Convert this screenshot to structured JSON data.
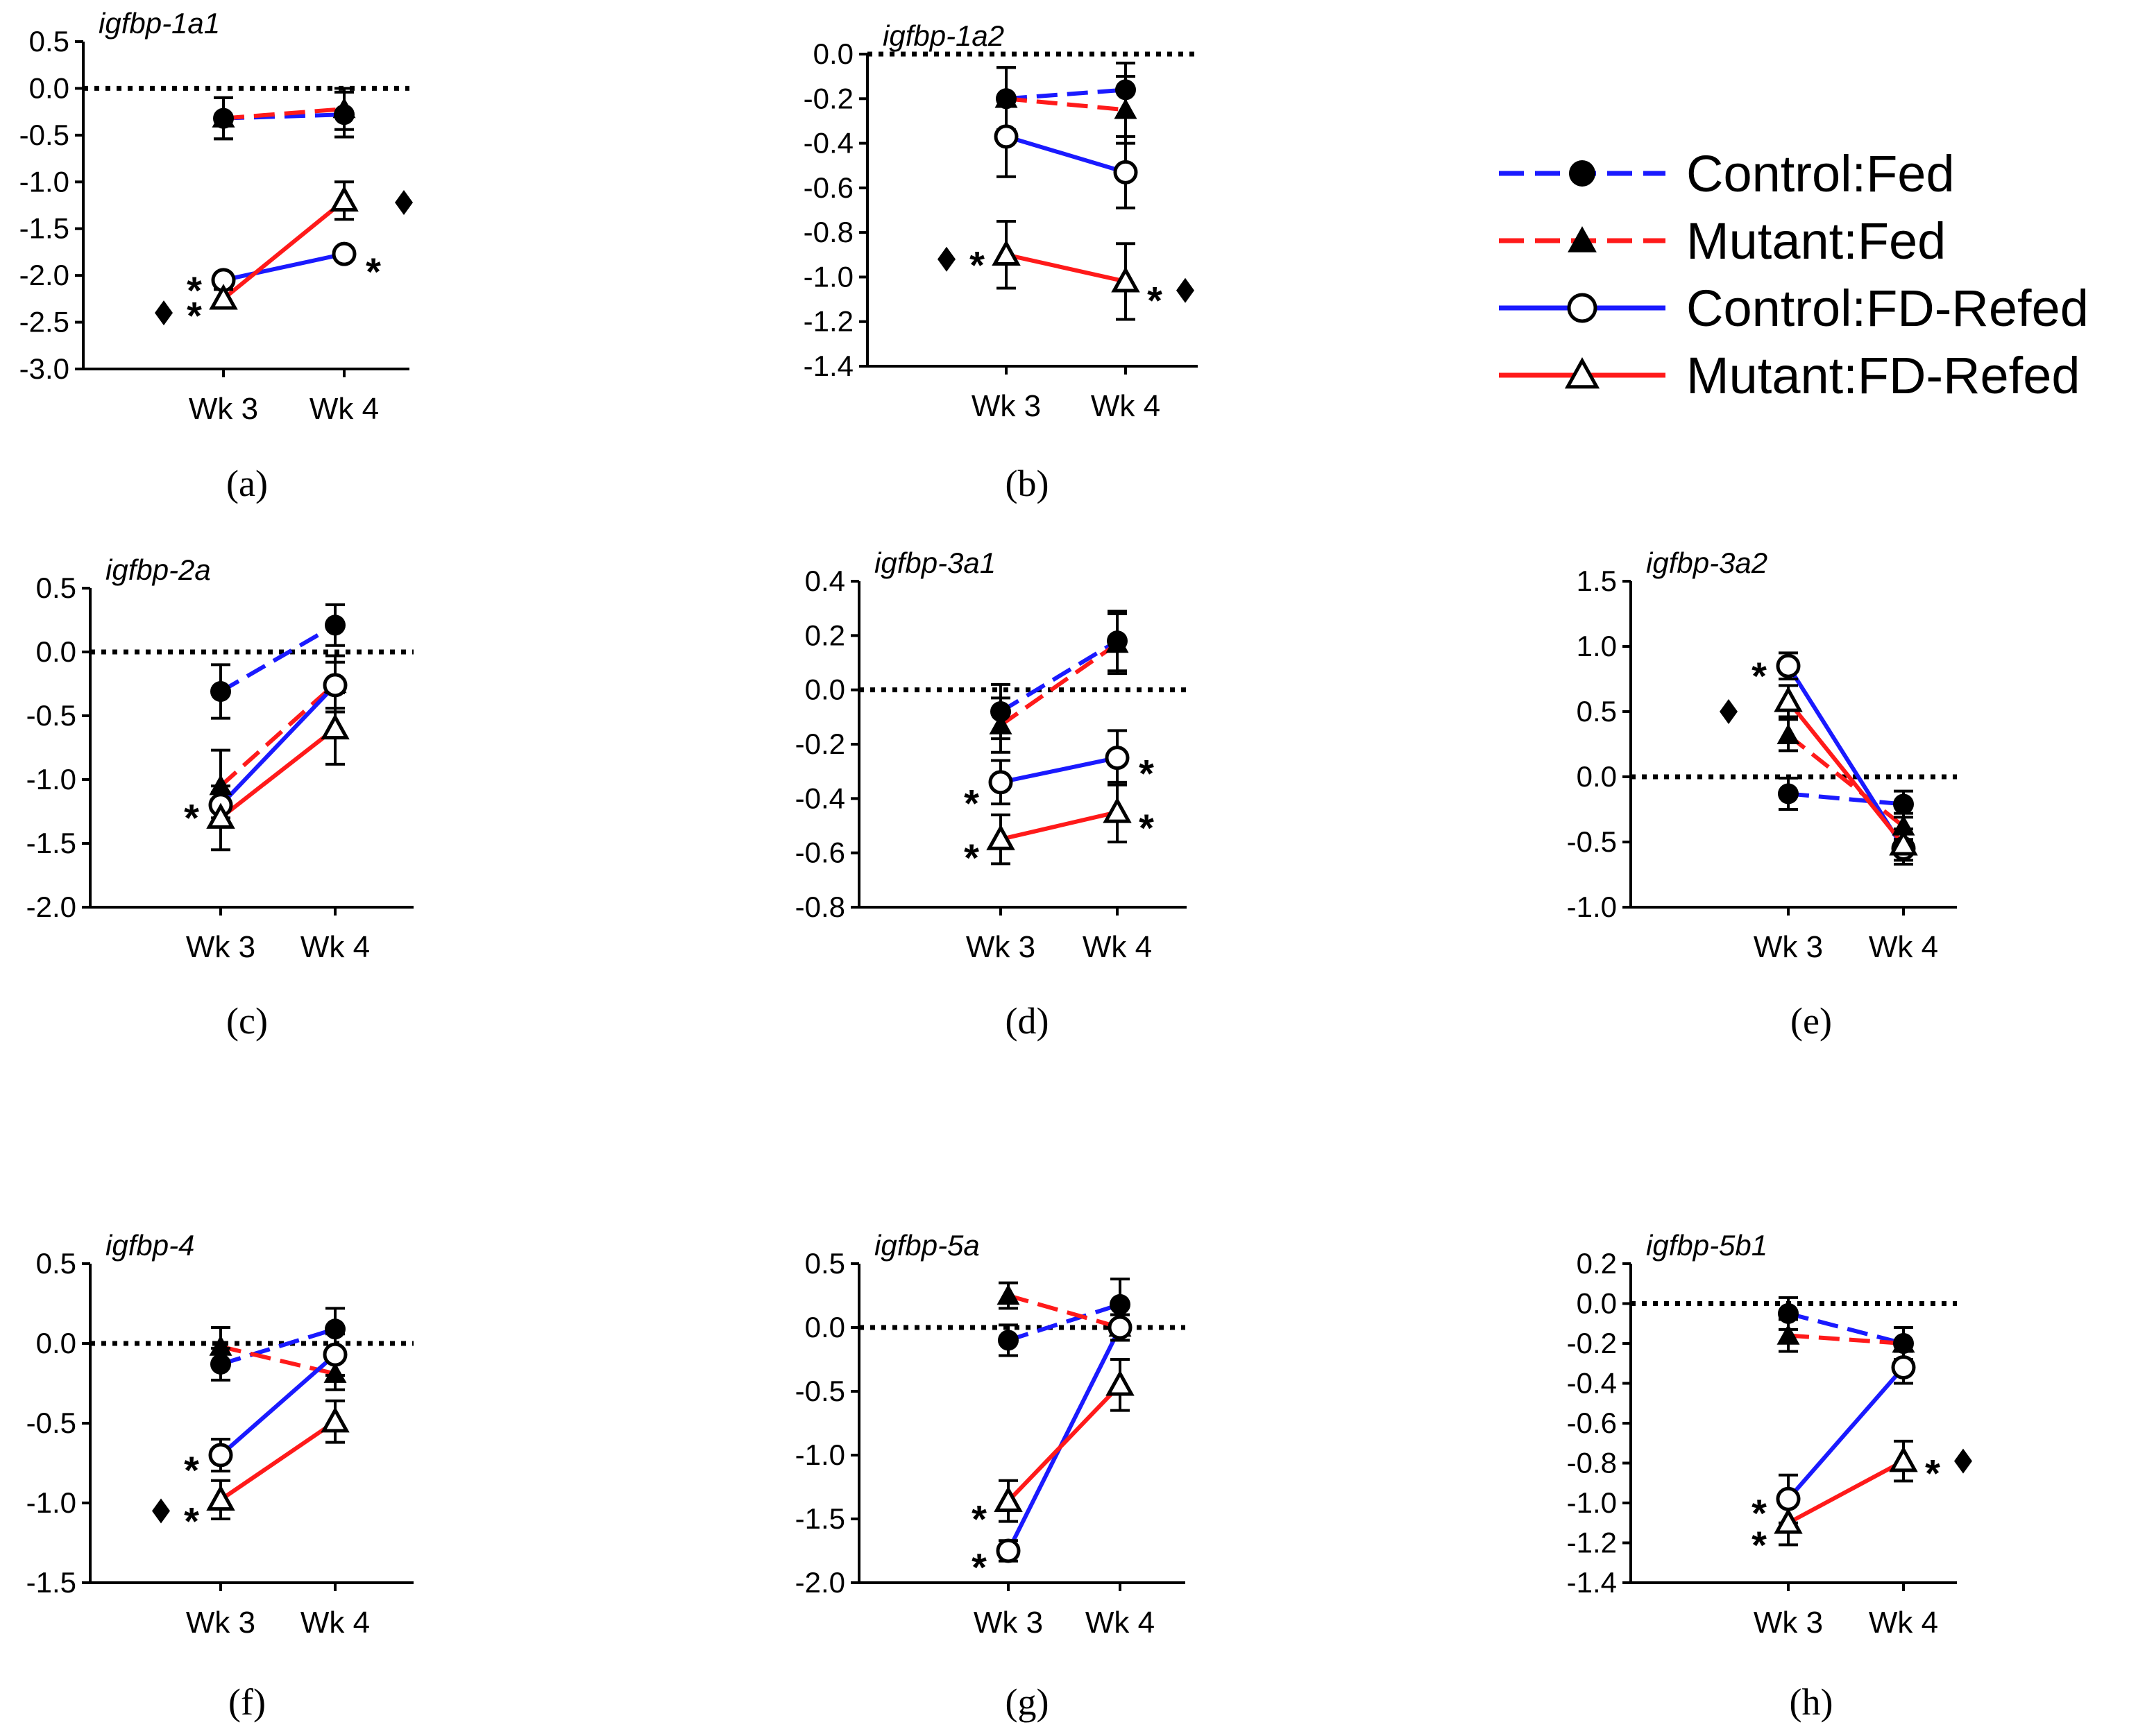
{
  "colors": {
    "blue": "#1a1aff",
    "red": "#ff1a1a",
    "black": "#000000"
  },
  "legend": {
    "items": [
      {
        "label": "Control:Fed",
        "color": "#1a1aff",
        "dashed": true,
        "marker": "filled-circle"
      },
      {
        "label": "Mutant:Fed",
        "color": "#ff1a1a",
        "dashed": true,
        "marker": "filled-triangle"
      },
      {
        "label": "Control:FD-Refed",
        "color": "#1a1aff",
        "dashed": false,
        "marker": "open-circle"
      },
      {
        "label": "Mutant:FD-Refed",
        "color": "#ff1a1a",
        "dashed": false,
        "marker": "open-triangle"
      }
    ]
  },
  "chart_data": [
    {
      "type": "line",
      "panel_label": "(a)",
      "title": "igfbp-1a1",
      "x": [
        "Wk 3",
        "Wk 4"
      ],
      "ylim": [
        -3.0,
        0.5
      ],
      "yticks": [
        "0.5",
        "0.0",
        "-0.5",
        "-1.0",
        "-1.5",
        "-2.0",
        "-2.5",
        "-3.0"
      ],
      "series": [
        {
          "name": "Control:Fed",
          "values": [
            -0.32,
            -0.28
          ],
          "err": [
            0.22,
            0.24
          ]
        },
        {
          "name": "Mutant:Fed",
          "values": [
            -0.32,
            -0.22
          ],
          "err": [
            0.22,
            0.22
          ]
        },
        {
          "name": "Control:FD-Refed",
          "values": [
            -2.05,
            -1.77
          ],
          "err": [
            0.07,
            0.06
          ]
        },
        {
          "name": "Mutant:FD-Refed",
          "values": [
            -2.25,
            -1.2
          ],
          "err": [
            0.1,
            0.2
          ]
        }
      ],
      "annotations": [
        {
          "text": "*",
          "x": "Wk 3",
          "y": -2.05,
          "side": "left"
        },
        {
          "text": "*",
          "x": "Wk 3",
          "y": -2.32,
          "side": "left"
        },
        {
          "text": "♦",
          "x": "Wk 3",
          "y": -2.4,
          "side": "far-left"
        },
        {
          "text": "*",
          "x": "Wk 4",
          "y": -1.85,
          "side": "right"
        },
        {
          "text": "♦",
          "x": "Wk 4",
          "y": -1.22,
          "side": "far-right"
        }
      ]
    },
    {
      "type": "line",
      "panel_label": "(b)",
      "title": "igfbp-1a2",
      "x": [
        "Wk 3",
        "Wk 4"
      ],
      "ylim": [
        -1.4,
        0.0
      ],
      "yticks": [
        "0.0",
        "-0.2",
        "-0.4",
        "-0.6",
        "-0.8",
        "-1.0",
        "-1.2",
        "-1.4"
      ],
      "series": [
        {
          "name": "Control:Fed",
          "values": [
            -0.2,
            -0.16
          ],
          "err": [
            0.14,
            0.12
          ]
        },
        {
          "name": "Mutant:Fed",
          "values": [
            -0.2,
            -0.25
          ],
          "err": [
            0.14,
            0.15
          ]
        },
        {
          "name": "Control:FD-Refed",
          "values": [
            -0.37,
            -0.53
          ],
          "err": [
            0.18,
            0.16
          ]
        },
        {
          "name": "Mutant:FD-Refed",
          "values": [
            -0.9,
            -1.02
          ],
          "err": [
            0.15,
            0.17
          ]
        }
      ],
      "annotations": [
        {
          "text": "*",
          "x": "Wk 3",
          "y": -0.9,
          "side": "left"
        },
        {
          "text": "♦",
          "x": "Wk 3",
          "y": -0.92,
          "side": "far-left"
        },
        {
          "text": "*",
          "x": "Wk 4",
          "y": -1.06,
          "side": "right"
        },
        {
          "text": "♦",
          "x": "Wk 4",
          "y": -1.06,
          "side": "far-right"
        }
      ]
    },
    {
      "type": "line",
      "panel_label": "(c)",
      "title": "igfbp-2a",
      "x": [
        "Wk 3",
        "Wk 4"
      ],
      "ylim": [
        -2.0,
        0.5
      ],
      "yticks": [
        "0.5",
        "0.0",
        "-0.5",
        "-1.0",
        "-1.5",
        "-2.0"
      ],
      "series": [
        {
          "name": "Control:Fed",
          "values": [
            -0.31,
            0.21
          ],
          "err": [
            0.21,
            0.16
          ]
        },
        {
          "name": "Mutant:Fed",
          "values": [
            -1.05,
            -0.25
          ],
          "err": [
            0.28,
            0.22
          ]
        },
        {
          "name": "Control:FD-Refed",
          "values": [
            -1.2,
            -0.26
          ],
          "err": [
            0.1,
            0.18
          ]
        },
        {
          "name": "Mutant:FD-Refed",
          "values": [
            -1.3,
            -0.6
          ],
          "err": [
            0.25,
            0.28
          ]
        }
      ],
      "annotations": [
        {
          "text": "*",
          "x": "Wk 3",
          "y": -1.22,
          "side": "left"
        }
      ]
    },
    {
      "type": "line",
      "panel_label": "(d)",
      "title": "igfbp-3a1",
      "x": [
        "Wk 3",
        "Wk 4"
      ],
      "ylim": [
        -0.8,
        0.4
      ],
      "yticks": [
        "0.4",
        "0.2",
        "0.0",
        "-0.2",
        "-0.4",
        "-0.6",
        "-0.8"
      ],
      "series": [
        {
          "name": "Control:Fed",
          "values": [
            -0.08,
            0.18
          ],
          "err": [
            0.1,
            0.11
          ]
        },
        {
          "name": "Mutant:Fed",
          "values": [
            -0.13,
            0.17
          ],
          "err": [
            0.1,
            0.11
          ]
        },
        {
          "name": "Control:FD-Refed",
          "values": [
            -0.34,
            -0.25
          ],
          "err": [
            0.08,
            0.1
          ]
        },
        {
          "name": "Mutant:FD-Refed",
          "values": [
            -0.55,
            -0.45
          ],
          "err": [
            0.09,
            0.11
          ]
        }
      ],
      "annotations": [
        {
          "text": "*",
          "x": "Wk 3",
          "y": -0.38,
          "side": "left"
        },
        {
          "text": "*",
          "x": "Wk 3",
          "y": -0.58,
          "side": "left"
        },
        {
          "text": "*",
          "x": "Wk 4",
          "y": -0.27,
          "side": "right"
        },
        {
          "text": "*",
          "x": "Wk 4",
          "y": -0.47,
          "side": "right"
        }
      ]
    },
    {
      "type": "line",
      "panel_label": "(e)",
      "title": "igfbp-3a2",
      "x": [
        "Wk 3",
        "Wk 4"
      ],
      "ylim": [
        -1.0,
        1.5
      ],
      "yticks": [
        "1.5",
        "1.0",
        "0.5",
        "0.0",
        "-0.5",
        "-1.0"
      ],
      "series": [
        {
          "name": "Control:Fed",
          "values": [
            -0.13,
            -0.21
          ],
          "err": [
            0.12,
            0.1
          ]
        },
        {
          "name": "Mutant:Fed",
          "values": [
            0.32,
            -0.38
          ],
          "err": [
            0.12,
            0.1
          ]
        },
        {
          "name": "Control:FD-Refed",
          "values": [
            0.85,
            -0.55
          ],
          "err": [
            0.1,
            0.12
          ]
        },
        {
          "name": "Mutant:FD-Refed",
          "values": [
            0.58,
            -0.52
          ],
          "err": [
            0.12,
            0.12
          ]
        }
      ],
      "annotations": [
        {
          "text": "*",
          "x": "Wk 3",
          "y": 0.85,
          "side": "left"
        },
        {
          "text": "♦",
          "x": "Wk 3",
          "y": 0.5,
          "side": "far-left"
        }
      ]
    },
    {
      "type": "line",
      "panel_label": "(f)",
      "title": "igfbp-4",
      "x": [
        "Wk 3",
        "Wk 4"
      ],
      "ylim": [
        -1.5,
        0.5
      ],
      "yticks": [
        "0.5",
        "0.0",
        "-0.5",
        "-1.0",
        "-1.5"
      ],
      "series": [
        {
          "name": "Control:Fed",
          "values": [
            -0.13,
            0.09
          ],
          "err": [
            0.1,
            0.13
          ]
        },
        {
          "name": "Mutant:Fed",
          "values": [
            -0.02,
            -0.19
          ],
          "err": [
            0.12,
            0.1
          ]
        },
        {
          "name": "Control:FD-Refed",
          "values": [
            -0.7,
            -0.07
          ],
          "err": [
            0.1,
            0.13
          ]
        },
        {
          "name": "Mutant:FD-Refed",
          "values": [
            -0.98,
            -0.49
          ],
          "err": [
            0.12,
            0.13
          ]
        }
      ],
      "annotations": [
        {
          "text": "*",
          "x": "Wk 3",
          "y": -0.73,
          "side": "left"
        },
        {
          "text": "*",
          "x": "Wk 3",
          "y": -1.05,
          "side": "left"
        },
        {
          "text": "♦",
          "x": "Wk 3",
          "y": -1.05,
          "side": "far-left"
        }
      ]
    },
    {
      "type": "line",
      "panel_label": "(g)",
      "title": "igfbp-5a",
      "x": [
        "Wk 3",
        "Wk 4"
      ],
      "ylim": [
        -2.0,
        0.5
      ],
      "yticks": [
        "0.5",
        "0.0",
        "-0.5",
        "-1.0",
        "-1.5",
        "-2.0"
      ],
      "series": [
        {
          "name": "Control:Fed",
          "values": [
            -0.1,
            0.18
          ],
          "err": [
            0.12,
            0.2
          ]
        },
        {
          "name": "Mutant:Fed",
          "values": [
            0.25,
            0.0
          ],
          "err": [
            0.1,
            0.1
          ]
        },
        {
          "name": "Control:FD-Refed",
          "values": [
            -1.75,
            0.0
          ],
          "err": [
            0.08,
            0.1
          ]
        },
        {
          "name": "Mutant:FD-Refed",
          "values": [
            -1.36,
            -0.45
          ],
          "err": [
            0.16,
            0.2
          ]
        }
      ],
      "annotations": [
        {
          "text": "*",
          "x": "Wk 3",
          "y": -1.42,
          "side": "left"
        },
        {
          "text": "*",
          "x": "Wk 3",
          "y": -1.8,
          "side": "left"
        }
      ]
    },
    {
      "type": "line",
      "panel_label": "(h)",
      "title": "igfbp-5b1",
      "x": [
        "Wk 3",
        "Wk 4"
      ],
      "ylim": [
        -1.4,
        0.2
      ],
      "yticks": [
        "0.2",
        "0.0",
        "-0.2",
        "-0.4",
        "-0.6",
        "-0.8",
        "-1.0",
        "-1.2",
        "-1.4"
      ],
      "series": [
        {
          "name": "Control:Fed",
          "values": [
            -0.05,
            -0.2
          ],
          "err": [
            0.08,
            0.08
          ]
        },
        {
          "name": "Mutant:Fed",
          "values": [
            -0.16,
            -0.2
          ],
          "err": [
            0.08,
            0.08
          ]
        },
        {
          "name": "Control:FD-Refed",
          "values": [
            -0.98,
            -0.32
          ],
          "err": [
            0.12,
            0.08
          ]
        },
        {
          "name": "Mutant:FD-Refed",
          "values": [
            -1.1,
            -0.79
          ],
          "err": [
            0.11,
            0.1
          ]
        }
      ],
      "annotations": [
        {
          "text": "*",
          "x": "Wk 3",
          "y": -1.0,
          "side": "left"
        },
        {
          "text": "*",
          "x": "Wk 3",
          "y": -1.16,
          "side": "left"
        },
        {
          "text": "*",
          "x": "Wk 4",
          "y": -0.8,
          "side": "right"
        },
        {
          "text": "♦",
          "x": "Wk 4",
          "y": -0.79,
          "side": "far-right"
        }
      ]
    }
  ]
}
